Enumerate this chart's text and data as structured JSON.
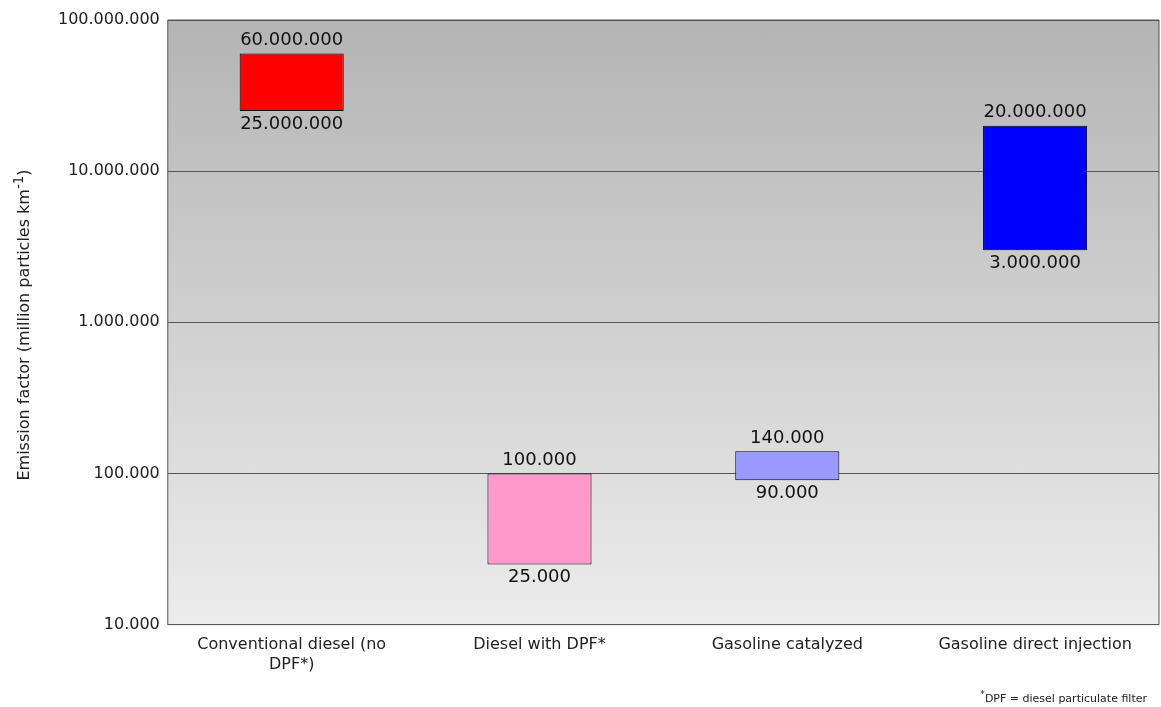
{
  "chart_data": {
    "type": "bar",
    "ylabel": "Emission factor (million particles km$^{-1}$)",
    "categories": [
      "Conventional diesel (no DPF*)",
      "Diesel with DPF*",
      "Gasoline catalyzed",
      "Gasoline direct injection"
    ],
    "base": [
      25000000,
      25000,
      90000,
      3000000
    ],
    "values": [
      35000000,
      75000,
      50000,
      17000000
    ],
    "colors": [
      "#ff0000",
      "#ff99cc",
      "#9999ff",
      "#0000ff"
    ],
    "log": "y",
    "ylim": [
      10000,
      100000000
    ],
    "yticks": [
      {
        "value": 10000,
        "label": "10.000"
      },
      {
        "value": 100000,
        "label": "100.000"
      },
      {
        "value": 1000000,
        "label": "1.000.000"
      },
      {
        "value": 10000000,
        "label": "10.000.000"
      },
      {
        "value": 100000000,
        "label": "100.000.000"
      }
    ],
    "grid": "y",
    "legend": false,
    "annotations": [
      {
        "text": "60.000.000",
        "x": "Conventional diesel (no DPF*)",
        "y": 60000000
      },
      {
        "text": "25.000.000",
        "x": "Conventional diesel (no DPF*)",
        "y": 25000000
      },
      {
        "text": "100.000",
        "x": "Diesel with DPF*",
        "y": 100000
      },
      {
        "text": "25.000",
        "x": "Diesel with DPF*",
        "y": 25000
      },
      {
        "text": "140.000",
        "x": "Gasoline catalyzed",
        "y": 140000
      },
      {
        "text": "90.000",
        "x": "Gasoline catalyzed",
        "y": 90000
      },
      {
        "text": "20.000.000",
        "x": "Gasoline direct injection",
        "y": 20000000
      },
      {
        "text": "3.000.000",
        "x": "Gasoline direct injection",
        "y": 3000000
      },
      "$^{*}$DPF = diesel particulate filter"
    ]
  }
}
